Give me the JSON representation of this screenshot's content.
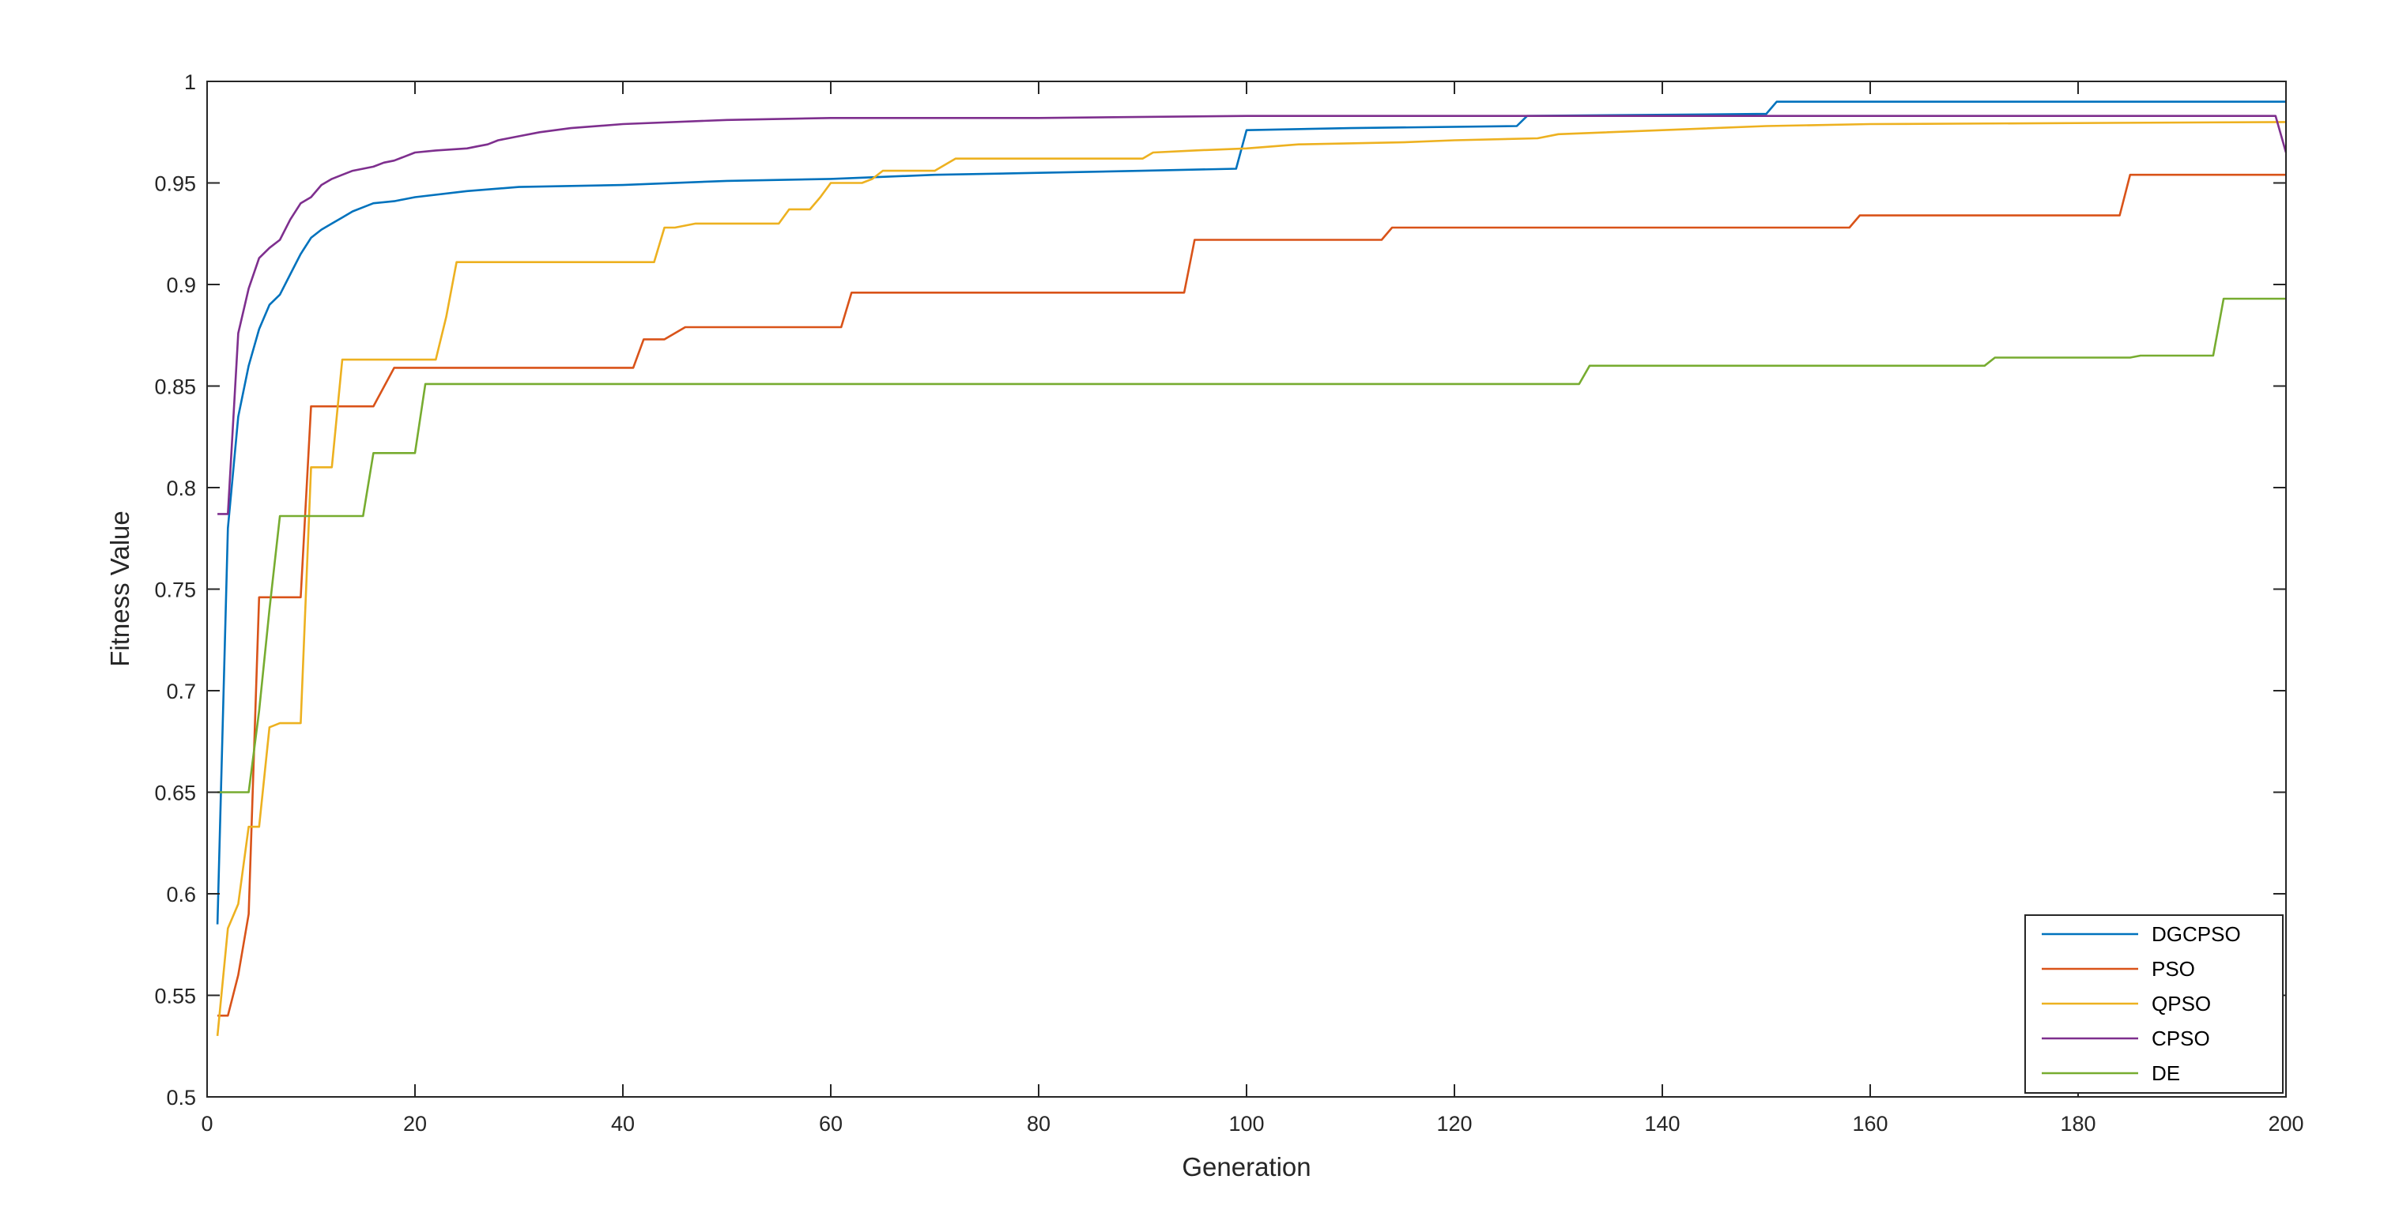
{
  "chart_data": {
    "type": "line",
    "xlabel": "Generation",
    "ylabel": "Fitness Value",
    "xlim": [
      0,
      200
    ],
    "ylim": [
      0.5,
      1
    ],
    "xticks": [
      0,
      20,
      40,
      60,
      80,
      100,
      120,
      140,
      160,
      180,
      200
    ],
    "yticks": [
      0.5,
      0.55,
      0.6,
      0.65,
      0.7,
      0.75,
      0.8,
      0.85,
      0.9,
      0.95,
      1
    ],
    "ytick_labels": [
      "0.5",
      "0.55",
      "0.6",
      "0.65",
      "0.7",
      "0.75",
      "0.8",
      "0.85",
      "0.9",
      "0.95",
      "1"
    ],
    "grid": false,
    "legend_position": "bottom-right",
    "series": [
      {
        "name": "DGCPSO",
        "color": "#0072BD",
        "x": [
          1,
          2,
          3,
          4,
          5,
          6,
          7,
          8,
          9,
          10,
          11,
          12,
          13,
          14,
          15,
          16,
          18,
          20,
          25,
          30,
          40,
          50,
          60,
          70,
          80,
          90,
          99,
          100,
          110,
          126,
          127,
          150,
          151,
          200
        ],
        "y": [
          0.585,
          0.78,
          0.835,
          0.86,
          0.878,
          0.89,
          0.895,
          0.905,
          0.915,
          0.923,
          0.927,
          0.93,
          0.933,
          0.936,
          0.938,
          0.94,
          0.941,
          0.943,
          0.946,
          0.948,
          0.949,
          0.951,
          0.952,
          0.954,
          0.955,
          0.956,
          0.957,
          0.976,
          0.977,
          0.978,
          0.983,
          0.984,
          0.99,
          0.99
        ]
      },
      {
        "name": "PSO",
        "color": "#D95319",
        "x": [
          1,
          2,
          3,
          4,
          5,
          6,
          7,
          8,
          9,
          10,
          16,
          18,
          41,
          42,
          44,
          46,
          61,
          62,
          94,
          95,
          113,
          114,
          158,
          159,
          184,
          185,
          200
        ],
        "y": [
          0.54,
          0.54,
          0.56,
          0.59,
          0.746,
          0.746,
          0.746,
          0.746,
          0.746,
          0.84,
          0.84,
          0.859,
          0.859,
          0.873,
          0.873,
          0.879,
          0.879,
          0.896,
          0.896,
          0.922,
          0.922,
          0.928,
          0.928,
          0.934,
          0.934,
          0.954,
          0.954
        ]
      },
      {
        "name": "QPSO",
        "color": "#EDB120",
        "x": [
          1,
          2,
          3,
          4,
          5,
          6,
          7,
          8,
          9,
          10,
          11,
          12,
          13,
          22,
          23,
          24,
          43,
          44,
          45,
          47,
          55,
          56,
          58,
          59,
          60,
          63,
          64,
          65,
          70,
          72,
          90,
          91,
          95,
          100,
          105,
          115,
          120,
          128,
          130,
          140,
          150,
          160,
          200
        ],
        "y": [
          0.53,
          0.583,
          0.595,
          0.633,
          0.633,
          0.682,
          0.684,
          0.684,
          0.684,
          0.81,
          0.81,
          0.81,
          0.863,
          0.863,
          0.884,
          0.911,
          0.911,
          0.928,
          0.928,
          0.93,
          0.93,
          0.937,
          0.937,
          0.943,
          0.95,
          0.95,
          0.952,
          0.956,
          0.956,
          0.962,
          0.962,
          0.965,
          0.966,
          0.967,
          0.969,
          0.97,
          0.971,
          0.972,
          0.974,
          0.976,
          0.978,
          0.979,
          0.98
        ]
      },
      {
        "name": "CPSO",
        "color": "#7E2F8E",
        "x": [
          1,
          2,
          3,
          4,
          5,
          6,
          7,
          8,
          9,
          10,
          11,
          12,
          13,
          14,
          15,
          16,
          17,
          18,
          20,
          22,
          25,
          26,
          27,
          28,
          30,
          32,
          35,
          40,
          50,
          60,
          80,
          100,
          150,
          199,
          200
        ],
        "y": [
          0.787,
          0.787,
          0.876,
          0.898,
          0.913,
          0.918,
          0.922,
          0.932,
          0.94,
          0.943,
          0.949,
          0.952,
          0.954,
          0.956,
          0.957,
          0.958,
          0.96,
          0.961,
          0.965,
          0.966,
          0.967,
          0.968,
          0.969,
          0.971,
          0.973,
          0.975,
          0.977,
          0.979,
          0.981,
          0.982,
          0.982,
          0.983,
          0.983,
          0.983,
          0.965
        ]
      },
      {
        "name": "DE",
        "color": "#77AC30",
        "x": [
          1,
          2,
          4,
          5,
          6,
          7,
          8,
          15,
          16,
          20,
          21,
          132,
          133,
          171,
          172,
          185,
          186,
          193,
          194,
          200
        ],
        "y": [
          0.65,
          0.65,
          0.65,
          0.69,
          0.74,
          0.786,
          0.786,
          0.786,
          0.817,
          0.817,
          0.851,
          0.851,
          0.86,
          0.86,
          0.864,
          0.864,
          0.865,
          0.865,
          0.893,
          0.893
        ]
      }
    ]
  }
}
